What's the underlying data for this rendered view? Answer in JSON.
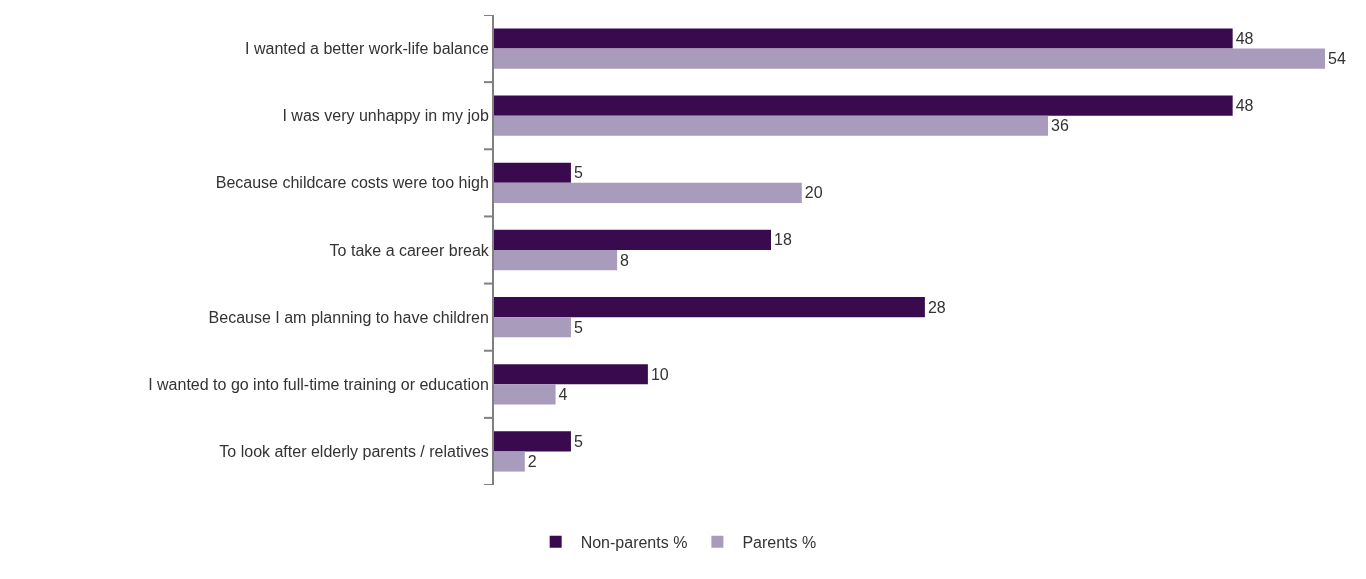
{
  "chart_data": {
    "type": "bar",
    "orientation": "horizontal",
    "data_labels": true,
    "legend": "bottom",
    "categories": [
      "I wanted a better work-life balance",
      "I was very unhappy in my job",
      "Because childcare costs were too high",
      "To take a career break",
      "Because I am planning to have children",
      "I wanted to go into full-time training or education",
      "To look after elderly parents / relatives"
    ],
    "series": [
      {
        "name": "Non-parents %",
        "color": "#3a0a4e",
        "values": [
          48,
          48,
          5,
          18,
          28,
          10,
          5
        ]
      },
      {
        "name": "Parents %",
        "color": "#a99bbb",
        "values": [
          54,
          36,
          20,
          8,
          5,
          4,
          2
        ]
      }
    ]
  }
}
